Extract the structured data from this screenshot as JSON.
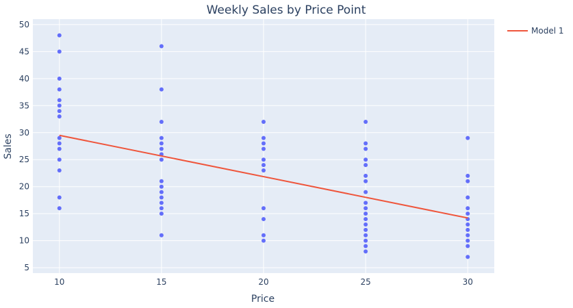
{
  "chart_data": {
    "type": "scatter",
    "title": "Weekly Sales by Price Point",
    "xlabel": "Price",
    "ylabel": "Sales",
    "xlim": [
      8.7,
      31.3
    ],
    "ylim": [
      4,
      51
    ],
    "xticks": [
      10,
      15,
      20,
      25,
      30
    ],
    "yticks": [
      5,
      10,
      15,
      20,
      25,
      30,
      35,
      40,
      45,
      50
    ],
    "grid": true,
    "legend_position": "top-right",
    "colors": {
      "plot_background": "#e5ecf6",
      "points": "#636efa",
      "model_line": "#ef553b",
      "text": "#2a3f5f",
      "grid": "#ffffff"
    },
    "points": [
      {
        "x": 10,
        "values": [
          48,
          45,
          40,
          38,
          36,
          35,
          34,
          33,
          29,
          28,
          27,
          25,
          23,
          18,
          16
        ]
      },
      {
        "x": 15,
        "values": [
          46,
          38,
          32,
          29,
          28,
          27,
          26,
          25,
          21,
          20,
          19,
          18,
          17,
          16,
          15,
          11
        ]
      },
      {
        "x": 20,
        "values": [
          32,
          29,
          28,
          27,
          25,
          24,
          23,
          16,
          14,
          11,
          10
        ]
      },
      {
        "x": 25,
        "values": [
          32,
          28,
          27,
          25,
          24,
          22,
          21,
          19,
          17,
          16,
          15,
          14,
          13,
          12,
          11,
          10,
          9,
          8
        ]
      },
      {
        "x": 30,
        "values": [
          29,
          22,
          21,
          18,
          16,
          15,
          14,
          13,
          12,
          11,
          10,
          9,
          7
        ]
      }
    ],
    "series": [
      {
        "name": "Model 1",
        "type": "line",
        "x": [
          10,
          30
        ],
        "y": [
          29.5,
          14.2
        ]
      }
    ]
  }
}
